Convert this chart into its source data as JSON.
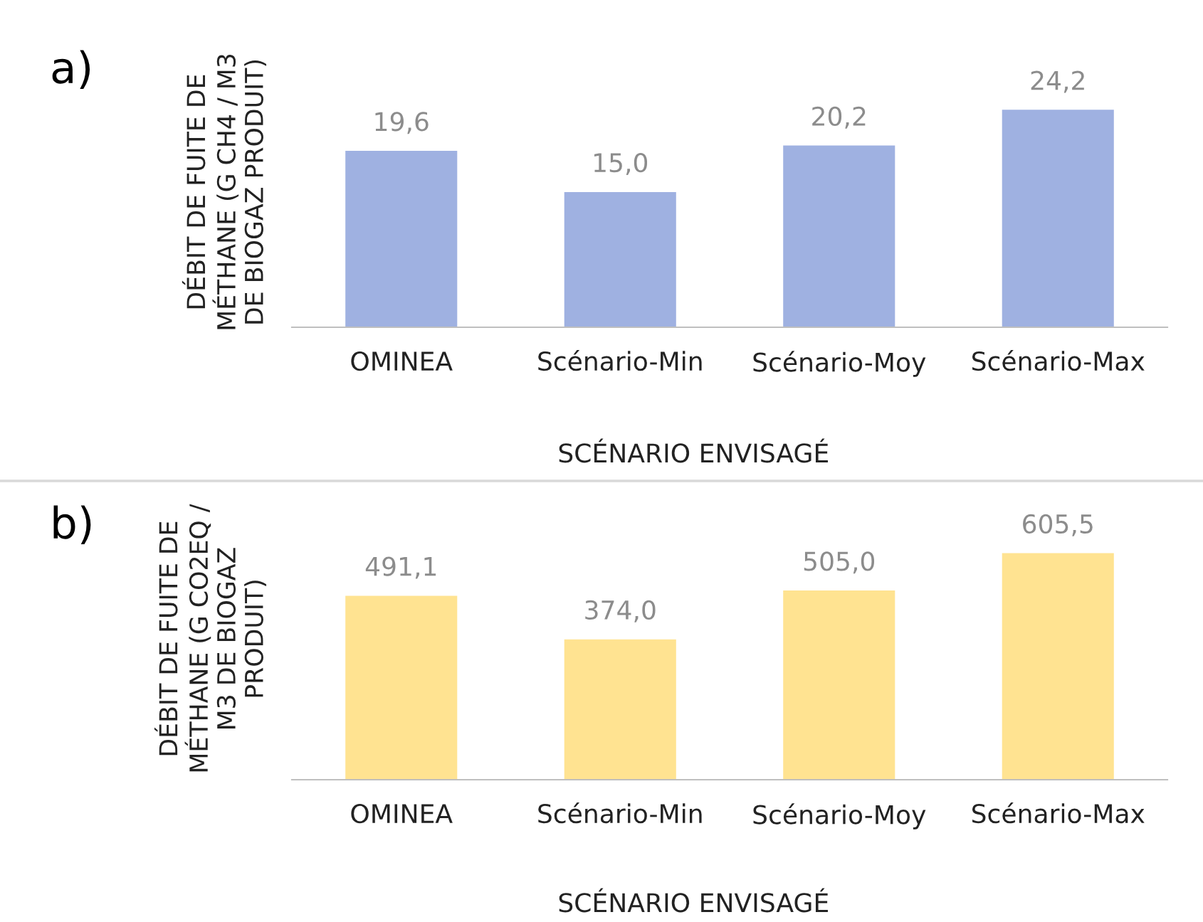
{
  "chart_data": [
    {
      "type": "bar",
      "title": "a)",
      "categories": [
        "OMINEA",
        "Scénario-Min",
        "Scénario-Moy",
        "Scénario-Max"
      ],
      "values": [
        19.6,
        15.0,
        20.2,
        24.2
      ],
      "value_labels": [
        "19,6",
        "15,0",
        "20,2",
        "24,2"
      ],
      "color": "#9fb1e1",
      "xlabel": "SCÉNARIO ENVISAGÉ",
      "ylabel": "DÉBIT DE FUITE DE\nMÉTHANE (G CH4 / M3\nDE BIOGAZ PRODUIT)",
      "tick_labels": "x",
      "grid": false,
      "legend": false
    },
    {
      "type": "bar",
      "title": "b)",
      "categories": [
        "OMINEA",
        "Scénario-Min",
        "Scénario-Moy",
        "Scénario-Max"
      ],
      "values": [
        491.1,
        374.0,
        505.0,
        605.5
      ],
      "value_labels": [
        "491,1",
        "374,0",
        "505,0",
        "605,5"
      ],
      "color": "#ffe391",
      "xlabel": "SCÉNARIO ENVISAGÉ",
      "ylabel": "DÉBIT DE FUITE DE\nMÉTHANE (G CO2EQ /\nM3 DE BIOGAZ\nPRODUIT)",
      "tick_labels": "x",
      "grid": false,
      "legend": false
    }
  ]
}
